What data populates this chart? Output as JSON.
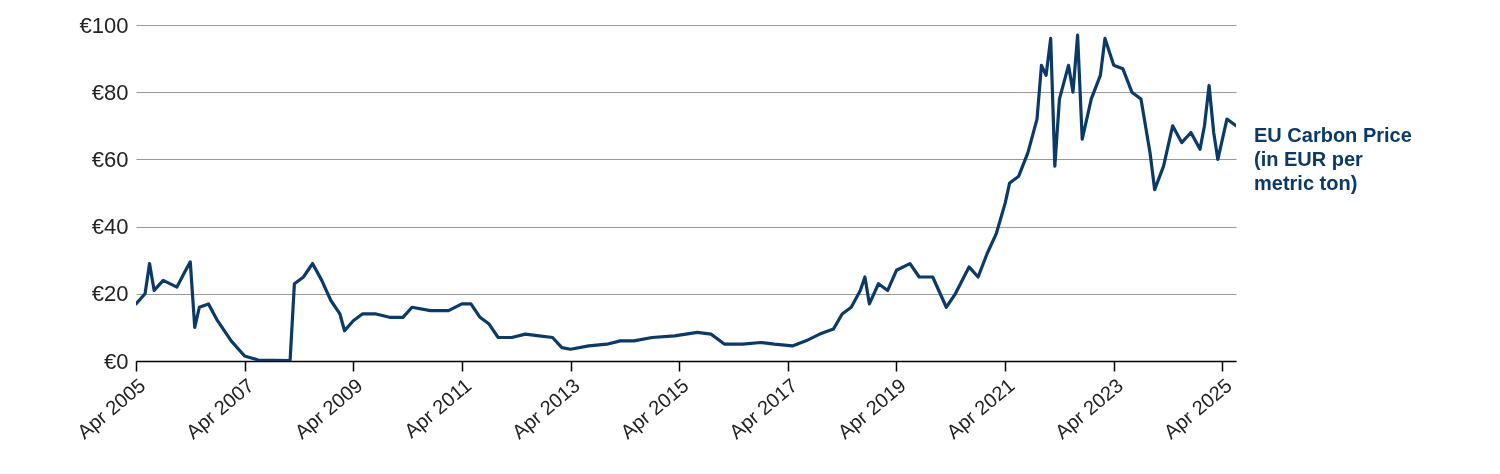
{
  "chart_data": {
    "type": "line",
    "x": [
      "2005-04",
      "2005-06",
      "2005-07",
      "2005-08",
      "2005-10",
      "2006-01",
      "2006-03",
      "2006-04",
      "2006-05",
      "2006-06",
      "2006-08",
      "2006-10",
      "2007-01",
      "2007-04",
      "2007-07",
      "2008-02",
      "2008-03",
      "2008-05",
      "2008-07",
      "2008-09",
      "2008-11",
      "2009-01",
      "2009-02",
      "2009-04",
      "2009-06",
      "2009-09",
      "2009-12",
      "2010-03",
      "2010-05",
      "2010-09",
      "2011-01",
      "2011-04",
      "2011-06",
      "2011-08",
      "2011-10",
      "2011-12",
      "2012-03",
      "2012-06",
      "2012-09",
      "2012-12",
      "2013-02",
      "2013-04",
      "2013-08",
      "2013-12",
      "2014-03",
      "2014-06",
      "2014-10",
      "2015-03",
      "2015-08",
      "2015-11",
      "2016-02",
      "2016-06",
      "2016-10",
      "2017-01",
      "2017-05",
      "2017-08",
      "2017-11",
      "2018-02",
      "2018-04",
      "2018-06",
      "2018-08",
      "2018-09",
      "2018-10",
      "2018-12",
      "2019-02",
      "2019-04",
      "2019-07",
      "2019-09",
      "2019-12",
      "2020-03",
      "2020-05",
      "2020-08",
      "2020-10",
      "2020-12",
      "2021-02",
      "2021-04",
      "2021-05",
      "2021-07",
      "2021-09",
      "2021-11",
      "2021-12",
      "2022-01",
      "2022-02",
      "2022-03",
      "2022-04",
      "2022-06",
      "2022-07",
      "2022-08",
      "2022-09",
      "2022-11",
      "2023-01",
      "2023-02",
      "2023-04",
      "2023-06",
      "2023-08",
      "2023-10",
      "2023-12",
      "2024-01",
      "2024-03",
      "2024-05",
      "2024-07",
      "2024-09",
      "2024-11",
      "2024-12",
      "2025-01",
      "2025-02",
      "2025-03",
      "2025-05",
      "2025-07"
    ],
    "series": [
      {
        "name": "EU Carbon Price (in EUR per metric ton)",
        "color": "#0b3a66",
        "values": [
          17,
          20,
          29,
          21,
          24,
          22,
          27,
          29.5,
          10,
          16,
          17,
          12,
          6,
          1.5,
          0.3,
          0.1,
          23,
          25,
          29,
          24,
          18,
          14,
          9,
          12,
          14,
          14,
          13,
          13,
          16,
          15,
          15,
          17,
          17,
          13,
          11,
          7,
          7,
          8,
          7.5,
          7,
          4,
          3.5,
          4.5,
          5,
          6,
          6,
          7,
          7.5,
          8.5,
          8,
          5,
          5,
          5.5,
          5,
          4.5,
          6,
          8,
          9.5,
          14,
          16,
          21,
          25,
          17,
          23,
          21,
          27,
          29,
          25,
          25,
          16,
          20,
          28,
          25,
          32,
          38,
          47,
          53,
          55,
          62,
          72,
          88,
          85,
          96,
          58,
          78,
          88,
          80,
          97,
          66,
          78,
          85,
          96,
          88,
          87,
          80,
          78,
          62,
          51,
          58,
          70,
          65,
          68,
          63,
          70,
          82,
          68,
          60,
          72,
          70
        ]
      }
    ],
    "xlim": [
      "2005-04",
      "2025-07"
    ],
    "xticks": [
      {
        "value": "2005-04",
        "label": "Apr 2005"
      },
      {
        "value": "2007-04",
        "label": "Apr 2007"
      },
      {
        "value": "2009-04",
        "label": "Apr 2009"
      },
      {
        "value": "2011-04",
        "label": "Apr 2011"
      },
      {
        "value": "2013-04",
        "label": "Apr 2013"
      },
      {
        "value": "2015-04",
        "label": "Apr 2015"
      },
      {
        "value": "2017-04",
        "label": "Apr 2017"
      },
      {
        "value": "2019-04",
        "label": "Apr 2019"
      },
      {
        "value": "2021-04",
        "label": "Apr 2021"
      },
      {
        "value": "2023-04",
        "label": "Apr 2023"
      },
      {
        "value": "2025-04",
        "label": "Apr 2025"
      }
    ],
    "ylim": [
      0,
      100
    ],
    "yticks": [
      {
        "value": 0,
        "label": "€0"
      },
      {
        "value": 20,
        "label": "€20"
      },
      {
        "value": 40,
        "label": "€40"
      },
      {
        "value": 60,
        "label": "€60"
      },
      {
        "value": 80,
        "label": "€80"
      },
      {
        "value": 100,
        "label": "€100"
      }
    ],
    "grid": "y",
    "legend": false,
    "marker": "none",
    "line_style": "solid"
  }
}
